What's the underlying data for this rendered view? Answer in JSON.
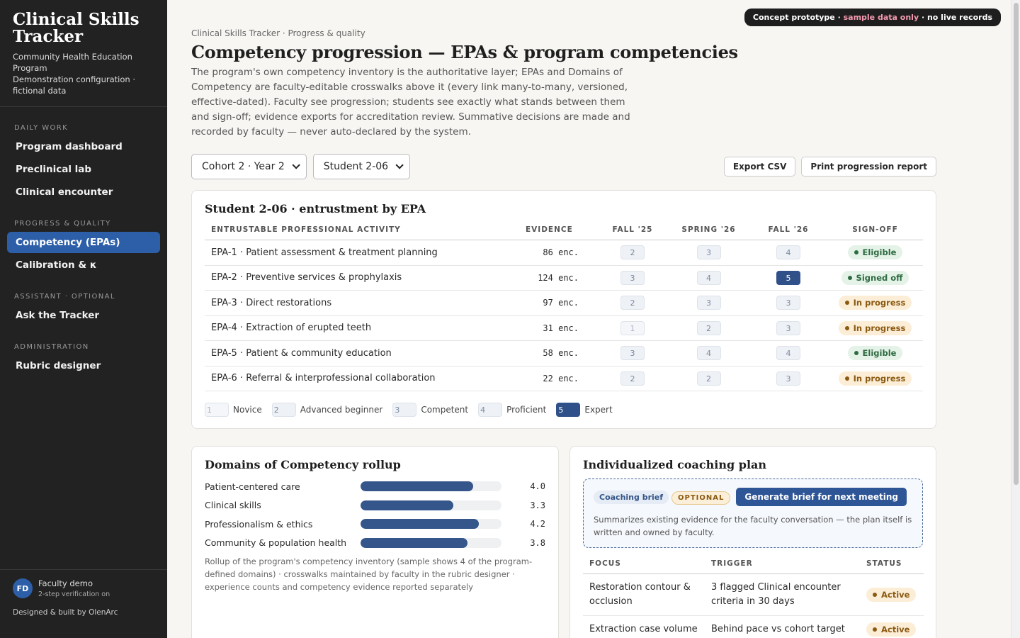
{
  "sidebar": {
    "title": "Clinical Skills Tracker",
    "subtitle": "Community Health Education Program",
    "note": "Demonstration configuration · fictional data",
    "sections": [
      {
        "heading": "DAILY WORK",
        "items": [
          {
            "label": "Program dashboard"
          },
          {
            "label": "Preclinical lab"
          },
          {
            "label": "Clinical encounter"
          }
        ]
      },
      {
        "heading": "PROGRESS & QUALITY",
        "items": [
          {
            "label": "Competency (EPAs)",
            "active": true
          },
          {
            "label": "Calibration & κ"
          }
        ]
      },
      {
        "heading": "ASSISTANT · OPTIONAL",
        "items": [
          {
            "label": "Ask the Tracker"
          }
        ]
      },
      {
        "heading": "ADMINISTRATION",
        "items": [
          {
            "label": "Rubric designer"
          }
        ]
      }
    ],
    "user": {
      "initials": "FD",
      "name": "Faculty demo",
      "detail": "2-step verification on"
    },
    "credit": "Designed & built by OlenArc"
  },
  "banner": {
    "prefix": "Concept prototype · ",
    "highlight": "sample data only",
    "suffix": " · no live records"
  },
  "header": {
    "breadcrumb": "Clinical Skills Tracker · Progress & quality",
    "title": "Competency progression — EPAs & program competencies",
    "description": "The program's own competency inventory is the authoritative layer; EPAs and Domains of Competency are faculty-editable crosswalks above it (every link many-to-many, versioned, effective-dated). Faculty see progression; students see exactly what stands between them and sign-off; evidence exports for accreditation review. Summative decisions are made and recorded by faculty — never auto-declared by the system."
  },
  "filters": [
    "Cohort 2 · Year 2",
    "Student 2-06"
  ],
  "actions": [
    "Export CSV",
    "Print progression report"
  ],
  "epa_table": {
    "title": "Student 2-06 · entrustment by EPA",
    "columns": [
      "ENTRUSTABLE PROFESSIONAL ACTIVITY",
      "EVIDENCE",
      "FALL '25",
      "SPRING '26",
      "FALL '26",
      "SIGN-OFF"
    ],
    "rows": [
      {
        "name": "EPA-1 · Patient assessment & treatment planning",
        "evidence": "86 enc.",
        "levels": [
          2,
          3,
          4
        ],
        "signoff": {
          "label": "Eligible",
          "color": "#2e6b40",
          "bg": "#e4f2e8"
        }
      },
      {
        "name": "EPA-2 · Preventive services & prophylaxis",
        "evidence": "124 enc.",
        "levels": [
          3,
          4,
          5
        ],
        "signoff": {
          "label": "Signed off",
          "color": "#2e6b40",
          "bg": "#e4f2e8"
        }
      },
      {
        "name": "EPA-3 · Direct restorations",
        "evidence": "97 enc.",
        "levels": [
          2,
          3,
          3
        ],
        "signoff": {
          "label": "In progress",
          "color": "#8a5a12",
          "bg": "#fcedd6"
        }
      },
      {
        "name": "EPA-4 · Extraction of erupted teeth",
        "evidence": "31 enc.",
        "levels": [
          1,
          2,
          3
        ],
        "signoff": {
          "label": "In progress",
          "color": "#8a5a12",
          "bg": "#fcedd6"
        }
      },
      {
        "name": "EPA-5 · Patient & community education",
        "evidence": "58 enc.",
        "levels": [
          3,
          4,
          4
        ],
        "signoff": {
          "label": "Eligible",
          "color": "#2e6b40",
          "bg": "#e4f2e8"
        }
      },
      {
        "name": "EPA-6 · Referral & interprofessional collaboration",
        "evidence": "22 enc.",
        "levels": [
          2,
          2,
          3
        ],
        "signoff": {
          "label": "In progress",
          "color": "#8a5a12",
          "bg": "#fcedd6"
        }
      }
    ],
    "legend": [
      {
        "level": 1,
        "label": "Novice"
      },
      {
        "level": 2,
        "label": "Advanced beginner"
      },
      {
        "level": 3,
        "label": "Competent"
      },
      {
        "level": 4,
        "label": "Proficient"
      },
      {
        "level": 5,
        "label": "Expert"
      }
    ]
  },
  "domains": {
    "title": "Domains of Competency rollup",
    "categories": [
      "Patient-centered care",
      "Clinical skills",
      "Professionalism & ethics",
      "Community & population health"
    ],
    "values": [
      4.0,
      3.3,
      4.2,
      3.8
    ],
    "value_labels": [
      "4.0",
      "3.3",
      "4.2",
      "3.8"
    ],
    "xlim": [
      0,
      5
    ],
    "color": "#35568a",
    "footnote": "Rollup of the program's competency inventory (sample shows 4 of the program-defined domains) · crosswalks maintained by faculty in the rubric designer · experience counts and competency evidence reported separately"
  },
  "coaching": {
    "title": "Individualized coaching plan",
    "tags": [
      "Coaching brief",
      "OPTIONAL"
    ],
    "button": "Generate brief for next meeting",
    "description": "Summarizes existing evidence for the faculty conversation — the plan itself is written and owned by faculty.",
    "columns": [
      "FOCUS",
      "TRIGGER",
      "STATUS"
    ],
    "rows": [
      [
        "Restoration contour & occlusion",
        "3 flagged Clinical encounter criteria in 30 days",
        "Active"
      ],
      [
        "Extraction case volume",
        "Behind pace vs cohort target",
        "Active"
      ]
    ]
  }
}
